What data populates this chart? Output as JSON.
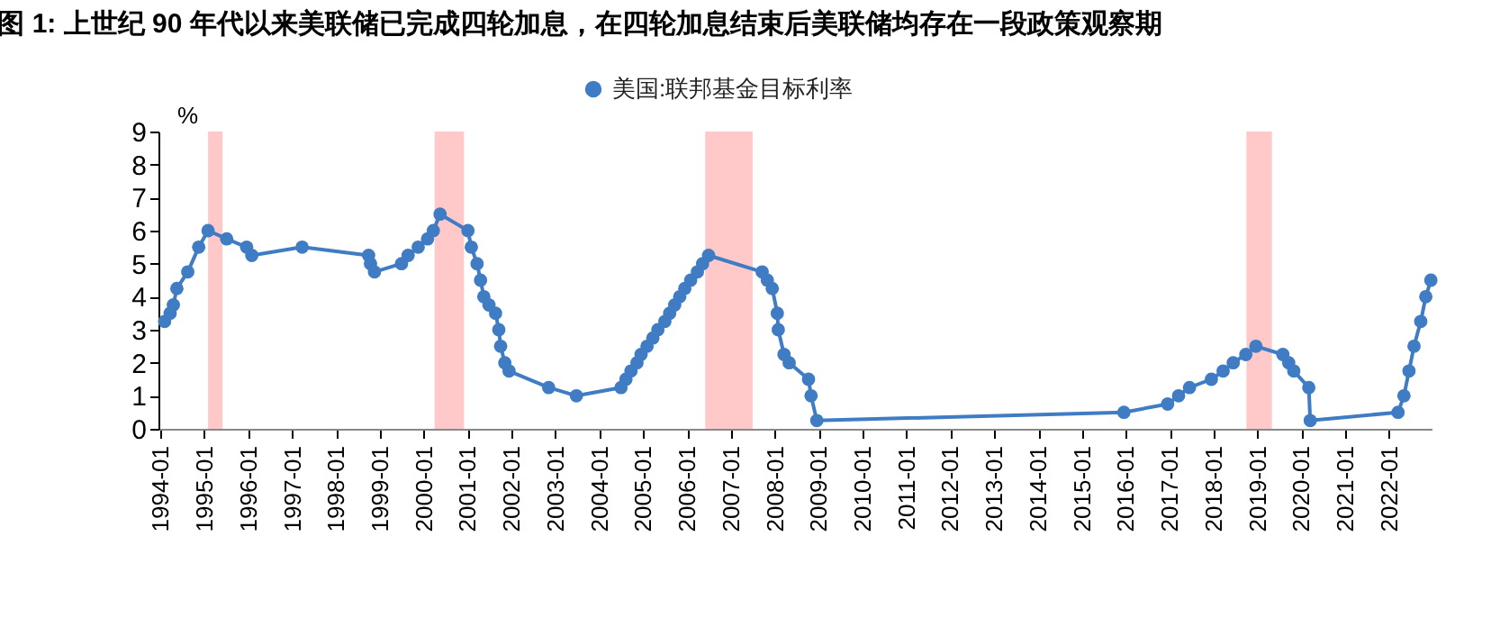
{
  "chart_data": {
    "type": "line",
    "title": "图 1:  上世纪 90 年代以来美联储已完成四轮加息，在四轮加息结束后美联储均存在一段政策观察期",
    "ylabel": "%",
    "marker": "circle",
    "legend": "top",
    "grid": false,
    "xlim": [
      "1993-12-15",
      "2022-12-20"
    ],
    "xticks": [
      "1994-01",
      "1995-01",
      "1996-01",
      "1997-01",
      "1998-01",
      "1999-01",
      "2000-01",
      "2001-01",
      "2002-01",
      "2003-01",
      "2004-01",
      "2005-01",
      "2006-01",
      "2007-01",
      "2008-01",
      "2009-01",
      "2010-01",
      "2011-01",
      "2012-01",
      "2013-01",
      "2014-01",
      "2015-01",
      "2016-01",
      "2017-01",
      "2018-01",
      "2019-01",
      "2020-01",
      "2021-01",
      "2022-01"
    ],
    "ylim": [
      0,
      9
    ],
    "yticks": [
      0,
      1,
      2,
      3,
      4,
      5,
      6,
      7,
      8,
      9
    ],
    "bands": [
      {
        "axis": "x",
        "from": "1995-02",
        "to": "1995-06",
        "color": "#ffc9c9"
      },
      {
        "axis": "x",
        "from": "2000-04",
        "to": "2000-12",
        "color": "#ffc9c9"
      },
      {
        "axis": "x",
        "from": "2006-06",
        "to": "2007-07",
        "color": "#ffc9c9"
      },
      {
        "axis": "x",
        "from": "2018-10",
        "to": "2019-05",
        "color": "#ffc9c9"
      }
    ],
    "series": [
      {
        "name": "美国:联邦基金目标利率",
        "color": "#3f7cc4",
        "x": [
          "1994-02-04",
          "1994-03-22",
          "1994-04-18",
          "1994-05-17",
          "1994-08-16",
          "1994-11-15",
          "1995-02-01",
          "1995-07-06",
          "1995-12-19",
          "1996-01-31",
          "1997-03-25",
          "1998-09-29",
          "1998-10-15",
          "1998-11-17",
          "1999-06-30",
          "1999-08-24",
          "1999-11-16",
          "2000-02-02",
          "2000-03-21",
          "2000-05-16",
          "2001-01-03",
          "2001-01-31",
          "2001-03-20",
          "2001-04-18",
          "2001-05-15",
          "2001-06-27",
          "2001-08-21",
          "2001-09-17",
          "2001-10-02",
          "2001-11-06",
          "2001-12-11",
          "2002-11-06",
          "2003-06-25",
          "2004-06-30",
          "2004-08-10",
          "2004-09-21",
          "2004-11-10",
          "2004-12-14",
          "2005-02-02",
          "2005-03-22",
          "2005-05-03",
          "2005-06-30",
          "2005-08-09",
          "2005-09-20",
          "2005-11-01",
          "2005-12-13",
          "2006-01-31",
          "2006-03-28",
          "2006-05-10",
          "2006-06-29",
          "2007-09-18",
          "2007-10-31",
          "2007-12-11",
          "2008-01-22",
          "2008-01-30",
          "2008-03-18",
          "2008-04-30",
          "2008-10-08",
          "2008-10-29",
          "2008-12-16",
          "2015-12-16",
          "2016-12-14",
          "2017-03-15",
          "2017-06-14",
          "2017-12-13",
          "2018-03-21",
          "2018-06-13",
          "2018-09-26",
          "2018-12-19",
          "2019-07-31",
          "2019-09-18",
          "2019-10-30",
          "2020-03-03",
          "2020-03-15",
          "2022-03-16",
          "2022-05-04",
          "2022-06-15",
          "2022-07-27",
          "2022-09-21",
          "2022-11-02",
          "2022-12-14"
        ],
        "values": [
          3.25,
          3.5,
          3.75,
          4.25,
          4.75,
          5.5,
          6,
          5.75,
          5.5,
          5.25,
          5.5,
          5.25,
          5,
          4.75,
          5,
          5.25,
          5.5,
          5.75,
          6,
          6.5,
          6,
          5.5,
          5,
          4.5,
          4,
          3.75,
          3.5,
          3,
          2.5,
          2,
          1.75,
          1.25,
          1,
          1.25,
          1.5,
          1.75,
          2,
          2.25,
          2.5,
          2.75,
          3,
          3.25,
          3.5,
          3.75,
          4,
          4.25,
          4.5,
          4.75,
          5,
          5.25,
          4.75,
          4.5,
          4.25,
          3.5,
          3,
          2.25,
          2,
          1.5,
          1,
          0.25,
          0.5,
          0.75,
          1,
          1.25,
          1.5,
          1.75,
          2,
          2.25,
          2.5,
          2.25,
          2,
          1.75,
          1.25,
          0.25,
          0.5,
          1,
          1.75,
          2.5,
          3.25,
          4,
          4.5
        ]
      }
    ]
  }
}
